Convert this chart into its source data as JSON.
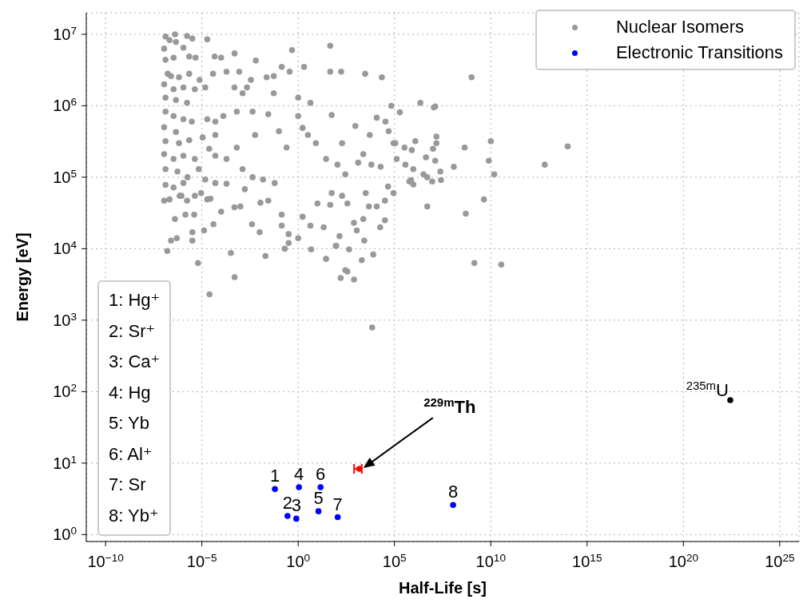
{
  "chart_data": {
    "type": "scatter",
    "xlabel": "Half-Life [s]",
    "ylabel": "Energy [eV]",
    "log": "xy",
    "grid": true,
    "legend": "top right",
    "marker": "circle",
    "xlim": [
      1e-11,
      1e+26
    ],
    "ylim": [
      0.8,
      20000000.0
    ],
    "xticks": [
      {
        "value": 1e-10,
        "label": "10$^{−10}$"
      },
      {
        "value": 1e-05,
        "label": "10$^{−5}$"
      },
      {
        "value": 1,
        "label": "10$^{0}$"
      },
      {
        "value": 100000.0,
        "label": "10$^{5}$"
      },
      {
        "value": 10000000000.0,
        "label": "10$^{10}$"
      },
      {
        "value": 1000000000000000.0,
        "label": "10$^{15}$"
      },
      {
        "value": 1e+20,
        "label": "10$^{20}$"
      },
      {
        "value": 1e+25,
        "label": "10$^{25}$"
      }
    ],
    "yticks": [
      {
        "value": 1,
        "label": "10$^{0}$"
      },
      {
        "value": 10,
        "label": "10$^{1}$"
      },
      {
        "value": 100,
        "label": "10$^{2}$"
      },
      {
        "value": 1000,
        "label": "10$^{3}$"
      },
      {
        "value": 10000.0,
        "label": "10$^{4}$"
      },
      {
        "value": 100000.0,
        "label": "10$^{5}$"
      },
      {
        "value": 1000000.0,
        "label": "10$^{6}$"
      },
      {
        "value": 10000000.0,
        "label": "10$^{7}$"
      }
    ],
    "series": [
      {
        "name": "Nuclear Isomers",
        "color": "#999999",
        "x": [
          46,
          0.48,
          4e-07,
          0.0005,
          0.0063,
          1.6e-07,
          2.5e-07,
          5e-07,
          4e-07,
          3.2e-06,
          3.2e-06,
          1.4e-06,
          4e-06,
          1.3e-05,
          4e-05,
          0.00032,
          0.004,
          0.02,
          0.01,
          0.14,
          0.14,
          0.32,
          0.32,
          0.2,
          1.0,
          4.7,
          28,
          89,
          440,
          2000,
          280,
          6.3e-06,
          2.5e-05,
          0.0005,
          6900,
          160,
          790,
          360,
          7900,
          1400000000.0,
          35000000000.0,
          500000000.0,
          4400000000.0,
          5000000.0,
          98000000000000.0,
          6300000000000.0,
          7900000000.0,
          15000000000.0,
          440000000.0,
          120000000.0,
          15000000.0,
          15000000.0,
          10000000.0,
          13000000.0,
          24000000.0,
          26000000.0,
          9100000.0,
          1200000.0,
          790000.0,
          370000.0,
          950000.0,
          720000.0,
          950000.0,
          130000.0,
          110000.0,
          2200000.0,
          13000000.0,
          190000.0,
          3200000.0,
          5000000.0,
          4300000.0,
          1000000000.0,
          11000000.0,
          10000000000.0,
          280,
          55,
          930,
          12000.0,
          34000.0,
          50000.0,
          2400,
          19000.0,
          46000.0,
          32000.0,
          18000.0,
          2700,
          95,
          46,
          21,
          360,
          4700,
          1100,
          55,
          3200,
          3.2,
          190,
          5200,
          68000.0,
          22000.0,
          3000,
          170,
          46,
          0.14,
          2.0,
          0.054,
          4.3,
          0.028,
          0.1,
          0.25,
          1.0,
          1.7,
          8.3,
          28,
          110,
          1300,
          6300,
          89000.0,
          330000.0,
          590000.0,
          89000.0,
          32000.0,
          190,
          10,
          1.7,
          4.3,
          140,
          780,
          2400,
          12000.0,
          0.0058,
          0.00065,
          0.00019,
          5e-05,
          0.0013,
          0.0043,
          0.015,
          0.06,
          0.011,
          0.028,
          0.0017,
          0.00019,
          5e-05,
          2.8e-05,
          0.0001,
          0.00049,
          0.001,
          0.0043,
          0.0013,
          0.00087,
          0.00019,
          3.8e-05,
          0.0001,
          4.6e-05,
          0.00049,
          0.0022,
          0.0035,
          0.023,
          0.054,
          0.36,
          1.0,
          0.00065,
          0.00013,
          5e-05,
          1.9e-05,
          2.4e-05,
          5e-05,
          1.1e-05,
          1.5e-05,
          6.9e-06,
          9.1e-06,
          1.9e-05,
          4.3e-06,
          1.7e-06,
          8.7e-07,
          1.3e-07,
          2.1e-07,
          4.5e-07,
          1.7e-06,
          3.2e-06,
          1.9e-05,
          1.1e-07,
          1.1e-06,
          1.3e-07,
          3.4e-07,
          2.2e-06,
          4.7e-06,
          1.7e-07,
          2.5e-07,
          6.5e-07,
          2.2e-06,
          7.6e-06,
          1.1e-07,
          3.4e-07,
          1.1e-06,
          4.3e-06,
          1.5e-05,
          1.3e-07,
          4.5e-07,
          1.7e-06,
          1.3e-07,
          3.4e-07,
          1.1e-06,
          3e-06,
          1.1e-07,
          4.5e-07,
          1.3e-07,
          6.5e-07,
          2.2e-06,
          1.1e-07,
          3.4e-07,
          1.1e-06,
          4.3e-06,
          1.3e-07,
          5.4e-07,
          1.8e-06,
          1.3e-07,
          3.4e-07,
          1.1e-06,
          1.1e-07,
          2.1e-07,
          7.1e-07
        ],
        "values": [
          6900000.0,
          6000000.0,
          10000000.0,
          5400000.0,
          4300000.0,
          9300,
          13000.0,
          14000.0,
          26000.0,
          17000.0,
          13000.0,
          30000.0,
          30000.0,
          18000.0,
          22000.0,
          8700,
          22000.0,
          7900,
          17000.0,
          30000.0,
          21000.0,
          16000.0,
          12000.0,
          10000.0,
          14000.0,
          9800,
          7200,
          11000.0,
          9800,
          6900,
          5000,
          6300,
          2300,
          4000,
          790,
          3900,
          3700,
          4800,
          8300,
          6300,
          6000,
          31000.0,
          49000.0,
          39000.0,
          270000.0,
          150000.0,
          170000.0,
          110000.0,
          260000.0,
          140000.0,
          370000.0,
          300000.0,
          250000.0,
          170000.0,
          120000.0,
          91000.0,
          87000.0,
          320000.0,
          240000.0,
          150000.0,
          130000.0,
          91000.0,
          79000.0,
          180000.0,
          300000.0,
          1100000.0,
          980000.0,
          810000.0,
          110000.0,
          100000.0,
          190000.0,
          2500000.0,
          950000.0,
          320000.0,
          110000.0,
          740000.0,
          520000.0,
          680000.0,
          600000.0,
          440000.0,
          210000.0,
          140000.0,
          74000.0,
          25000.0,
          20000.0,
          13000.0,
          11000.0,
          41000.0,
          20000.0,
          43000.0,
          39000.0,
          18000.0,
          60000.0,
          60000.0,
          390000.0,
          300000.0,
          390000.0,
          1000000.0,
          2500000.0,
          2800000.0,
          3000000.0,
          3000000.0,
          3500000.0,
          3500000.0,
          1500000.0,
          1100000.0,
          760000.0,
          440000.0,
          260000.0,
          720000.0,
          490000.0,
          300000.0,
          180000.0,
          150000.0,
          160000.0,
          150000.0,
          300000.0,
          260000.0,
          87000.0,
          60000.0,
          47000.0,
          55000.0,
          43000.0,
          28000.0,
          21000.0,
          15000.0,
          23000.0,
          26000.0,
          39000.0,
          390000.0,
          260000.0,
          180000.0,
          200000.0,
          130000.0,
          100000.0,
          93000.0,
          83000.0,
          44000.0,
          47000.0,
          68000.0,
          81000.0,
          83000.0,
          50000.0,
          33000.0,
          38000.0,
          39000.0,
          830000.0,
          1500000.0,
          3000000.0,
          3000000.0,
          2800000.0,
          4700000.0,
          4900000.0,
          1800000.0,
          1800000.0,
          2300000.0,
          2500000.0,
          2600000.0,
          3000000.0,
          1300000.0,
          830000.0,
          720000.0,
          600000.0,
          650000.0,
          250000.0,
          390000.0,
          360000.0,
          93000.0,
          130000.0,
          60000.0,
          49000.0,
          55000.0,
          47000.0,
          55000.0,
          9300000.0,
          8300000.0,
          7800000.0,
          9500000.0,
          8700000.0,
          8500000.0,
          6300000.0,
          6500000.0,
          4400000.0,
          4700000.0,
          4900000.0,
          4700000.0,
          2800000.0,
          2600000.0,
          2500000.0,
          2800000.0,
          2300000.0,
          2000000.0,
          1700000.0,
          1800000.0,
          1700000.0,
          1800000.0,
          1300000.0,
          1200000.0,
          1100000.0,
          830000.0,
          720000.0,
          650000.0,
          600000.0,
          500000.0,
          430000.0,
          320000.0,
          300000.0,
          330000.0,
          210000.0,
          180000.0,
          200000.0,
          180000.0,
          130000.0,
          120000.0,
          100000.0,
          78000.0,
          72000.0,
          83000.0,
          47000.0,
          49000.0,
          55000.0
        ]
      },
      {
        "name": "Electronic Transitions",
        "color": "#0000ff",
        "x": [
          0.062,
          0.28,
          0.8,
          1.1,
          11.3,
          14.5,
          113,
          110000000.0
        ],
        "values": [
          4.33,
          1.82,
          1.67,
          4.6,
          2.12,
          4.6,
          1.75,
          2.6
        ]
      },
      {
        "color": "#ff0000",
        "x": [
          1500
        ],
        "values": [
          8.3
        ],
        "xerrors": [
          [
            800,
            2000
          ]
        ]
      },
      {
        "color": "#000000",
        "x": [
          2.7e+22
        ],
        "values": [
          76
        ]
      }
    ],
    "annotations": [
      "1: Hg⁺",
      "2: Sr⁺",
      "3: Ca⁺",
      "4: Hg",
      "5: Yb",
      "6: Al⁺",
      "7: Sr",
      "8: Yb⁺",
      {
        "text": "1",
        "x": 0.062,
        "y": 4.33
      },
      {
        "text": "2",
        "x": 0.28,
        "y": 1.82
      },
      {
        "text": "3",
        "x": 0.8,
        "y": 1.67
      },
      {
        "text": "4",
        "x": 1.1,
        "y": 4.6
      },
      {
        "text": "5",
        "x": 11.3,
        "y": 2.12
      },
      {
        "text": "6",
        "x": 14.5,
        "y": 4.6
      },
      {
        "text": "7",
        "x": 113,
        "y": 1.75
      },
      {
        "text": "8",
        "x": 110000000.0,
        "y": 2.6
      },
      "$^{229m}$Th",
      {
        "text": "$^{235m}$U",
        "x": 2.7e+22,
        "y": 76
      }
    ]
  }
}
